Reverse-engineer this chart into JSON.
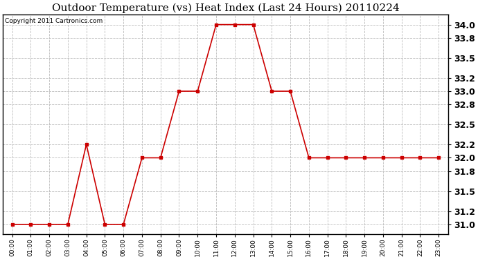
{
  "title": "Outdoor Temperature (vs) Heat Index (Last 24 Hours) 20110224",
  "copyright_text": "Copyright 2011 Cartronics.com",
  "hours": [
    0,
    1,
    2,
    3,
    4,
    5,
    6,
    7,
    8,
    9,
    10,
    11,
    12,
    13,
    14,
    15,
    16,
    17,
    18,
    19,
    20,
    21,
    22,
    23
  ],
  "hour_labels": [
    "00:00",
    "01:00",
    "02:00",
    "03:00",
    "04:00",
    "05:00",
    "06:00",
    "07:00",
    "08:00",
    "09:00",
    "10:00",
    "11:00",
    "12:00",
    "13:00",
    "14:00",
    "15:00",
    "16:00",
    "17:00",
    "18:00",
    "19:00",
    "20:00",
    "21:00",
    "22:00",
    "23:00"
  ],
  "values": [
    31.0,
    31.0,
    31.0,
    31.0,
    32.2,
    31.0,
    31.0,
    32.0,
    32.0,
    33.0,
    33.0,
    34.0,
    34.0,
    34.0,
    33.0,
    33.0,
    32.0,
    32.0,
    32.0,
    32.0,
    32.0,
    32.0,
    32.0,
    32.0
  ],
  "line_color": "#cc0000",
  "marker": "s",
  "marker_size": 3,
  "ylim": [
    30.85,
    34.15
  ],
  "yticks": [
    31.0,
    31.2,
    31.5,
    31.8,
    32.0,
    32.2,
    32.5,
    32.8,
    33.0,
    33.2,
    33.5,
    33.8,
    34.0
  ],
  "grid_color": "#bbbbbb",
  "background_color": "#ffffff",
  "title_fontsize": 11,
  "copyright_fontsize": 6.5,
  "ytick_fontsize": 9,
  "xtick_fontsize": 6.5
}
